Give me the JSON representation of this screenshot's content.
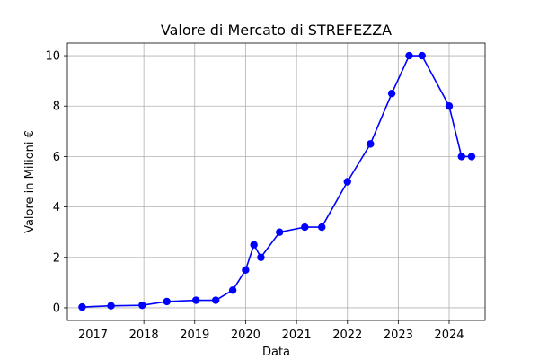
{
  "chart_data": {
    "type": "line",
    "title": "Valore di Mercato di STREFEZZA",
    "xlabel": "Data",
    "ylabel": "Valore in Milioni €",
    "xlim": [
      "2016-07-01",
      "2024-09-15"
    ],
    "ylim": [
      -0.5,
      10.5
    ],
    "x_ticks": [
      "2017-01-01",
      "2018-01-01",
      "2019-01-01",
      "2020-01-01",
      "2021-01-01",
      "2022-01-01",
      "2023-01-01",
      "2024-01-01"
    ],
    "x_tick_labels": [
      "2017",
      "2018",
      "2019",
      "2020",
      "2021",
      "2022",
      "2023",
      "2024"
    ],
    "y_ticks": [
      0,
      2,
      4,
      6,
      8,
      10
    ],
    "y_tick_labels": [
      "0",
      "2",
      "4",
      "6",
      "8",
      "10"
    ],
    "grid": true,
    "line_color": "#0000ff",
    "marker": "circle",
    "series": [
      {
        "x": [
          "2016-10-15",
          "2017-05-10",
          "2017-12-20",
          "2018-06-15",
          "2019-01-10",
          "2019-06-01",
          "2019-10-01",
          "2020-01-01",
          "2020-03-01",
          "2020-04-20",
          "2020-09-01",
          "2021-03-01",
          "2021-07-01",
          "2022-01-01",
          "2022-06-15",
          "2022-11-15",
          "2023-03-20",
          "2023-06-20",
          "2024-01-01",
          "2024-03-30",
          "2024-06-10"
        ],
        "values": [
          0.03,
          0.08,
          0.1,
          0.25,
          0.3,
          0.3,
          0.7,
          1.5,
          2.5,
          2.0,
          3.0,
          3.2,
          3.2,
          5.0,
          6.5,
          8.5,
          10.0,
          10.0,
          8.0,
          6.0,
          6.0
        ]
      }
    ]
  }
}
